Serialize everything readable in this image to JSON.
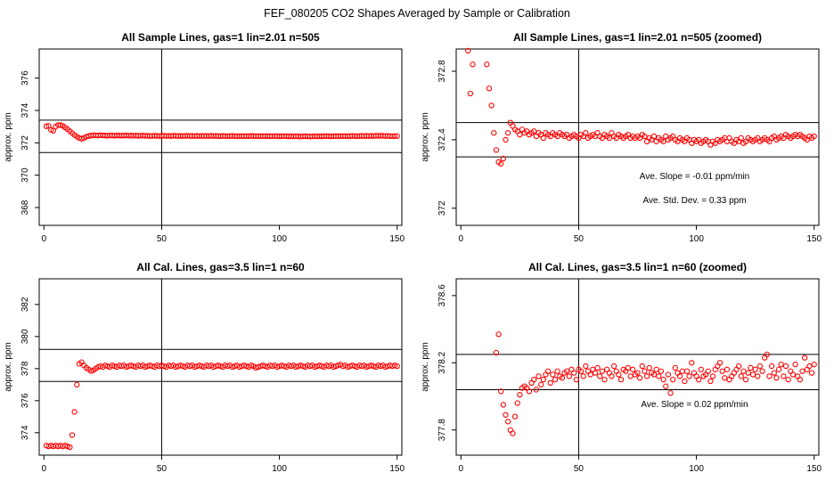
{
  "figure": {
    "title": "FEF_080205  CO2 Shapes Averaged by Sample or Calibration"
  },
  "chart_data": [
    {
      "type": "scatter",
      "title": "All Sample Lines, gas=1 lin=2.01 n=505",
      "xlabel": "",
      "ylabel": "approx. ppm",
      "xlim": [
        -2,
        152
      ],
      "ylim": [
        366.9,
        377.8
      ],
      "xticks": [
        0,
        50,
        100,
        150
      ],
      "yticks": [
        368,
        370,
        372,
        374,
        376
      ],
      "point_color": "#ff0000",
      "vline_x": 50,
      "hlines": [
        373.4,
        371.4
      ],
      "annotations": [],
      "series": [
        {
          "x_start": 1,
          "x_step": 1,
          "y": [
            373.02,
            373.05,
            372.8,
            372.75,
            373.0,
            373.1,
            373.1,
            373.05,
            372.95,
            372.85,
            372.72,
            372.6,
            372.48,
            372.38,
            372.3,
            372.25,
            372.3,
            372.38,
            372.42,
            372.45,
            372.47,
            372.46,
            372.45,
            372.47,
            372.46,
            372.45,
            372.44,
            372.46,
            372.45,
            372.44,
            372.46,
            372.45,
            372.44,
            372.45,
            372.46,
            372.44,
            372.45,
            372.44,
            372.45,
            372.43,
            372.44,
            372.45,
            372.43,
            372.44,
            372.42,
            372.43,
            372.44,
            372.43,
            372.42,
            372.43,
            372.44,
            372.42,
            372.43,
            372.42,
            372.44,
            372.43,
            372.42,
            372.43,
            372.42,
            372.43,
            372.44,
            372.42,
            372.43,
            372.42,
            372.43,
            372.42,
            372.43,
            372.42,
            372.43,
            372.42,
            372.44,
            372.42,
            372.43,
            372.42,
            372.41,
            372.43,
            372.42,
            372.41,
            372.42,
            372.43,
            372.41,
            372.42,
            372.41,
            372.42,
            372.41,
            372.42,
            372.41,
            372.43,
            372.42,
            372.41,
            372.42,
            372.41,
            372.42,
            372.41,
            372.42,
            372.41,
            372.42,
            372.41,
            372.42,
            372.4,
            372.41,
            372.42,
            372.41,
            372.4,
            372.41,
            372.4,
            372.41,
            372.4,
            372.39,
            372.4,
            372.41,
            372.4,
            372.39,
            372.4,
            372.41,
            372.4,
            372.41,
            372.4,
            372.41,
            372.42,
            372.41,
            372.4,
            372.41,
            372.42,
            372.41,
            372.42,
            372.41,
            372.42,
            372.41,
            372.42,
            372.43,
            372.42,
            372.41,
            372.42,
            372.43,
            372.42,
            372.43,
            372.42,
            372.43,
            372.42,
            372.44,
            372.43,
            372.44,
            372.43,
            372.42,
            372.43,
            372.42,
            372.41,
            372.42,
            372.42
          ]
        }
      ]
    },
    {
      "type": "scatter",
      "title": "All Sample Lines, gas=1 lin=2.01 n=505 (zoomed)",
      "xlabel": "",
      "ylabel": "approx. ppm",
      "xlim": [
        -2,
        152
      ],
      "ylim": [
        371.9,
        372.93
      ],
      "xticks": [
        0,
        50,
        100,
        150
      ],
      "yticks": [
        372.0,
        372.4,
        372.8
      ],
      "point_color": "#ff0000",
      "vline_x": 50,
      "hlines": [
        372.5,
        372.3
      ],
      "annotations": [
        "Ave. Slope =  -0.01  ppm/min",
        "Ave. Std. Dev. =  0.33  ppm"
      ],
      "series": [
        {
          "x_start": 1,
          "x_step": 1,
          "y": [
            null,
            null,
            372.92,
            372.67,
            372.84,
            null,
            null,
            null,
            null,
            null,
            372.84,
            372.7,
            372.6,
            372.44,
            372.34,
            372.27,
            372.26,
            372.29,
            372.4,
            372.44,
            372.5,
            372.48,
            372.46,
            372.45,
            372.43,
            372.46,
            372.44,
            372.45,
            372.43,
            372.44,
            372.45,
            372.42,
            372.44,
            372.43,
            372.41,
            372.44,
            372.43,
            372.42,
            372.44,
            372.43,
            372.42,
            372.44,
            372.43,
            372.42,
            372.43,
            372.41,
            372.42,
            372.43,
            372.42,
            372.41,
            372.43,
            372.42,
            372.44,
            372.41,
            372.42,
            372.43,
            372.42,
            372.44,
            372.42,
            372.41,
            372.43,
            372.42,
            372.41,
            372.44,
            372.42,
            372.41,
            372.43,
            372.42,
            372.41,
            372.42,
            372.43,
            372.41,
            372.42,
            372.41,
            372.42,
            372.41,
            372.43,
            372.42,
            372.39,
            372.41,
            372.4,
            372.42,
            372.39,
            372.41,
            372.4,
            372.39,
            372.42,
            372.4,
            372.41,
            372.42,
            372.4,
            372.39,
            372.41,
            372.4,
            372.39,
            372.41,
            372.4,
            372.38,
            372.4,
            372.39,
            372.4,
            372.38,
            372.39,
            372.4,
            372.39,
            372.37,
            372.39,
            372.38,
            372.4,
            372.39,
            372.4,
            372.41,
            372.39,
            372.41,
            372.39,
            372.38,
            372.4,
            372.39,
            372.41,
            372.38,
            372.39,
            372.41,
            372.4,
            372.39,
            372.4,
            372.41,
            372.39,
            372.4,
            372.41,
            372.4,
            372.39,
            372.41,
            372.42,
            372.4,
            372.41,
            372.42,
            372.41,
            372.43,
            372.42,
            372.41,
            372.42,
            372.43,
            372.42,
            372.43,
            372.42,
            372.41,
            372.4,
            372.42,
            372.41,
            372.42
          ]
        }
      ]
    },
    {
      "type": "scatter",
      "title": "All Cal. Lines, gas=3.5 lin=1 n=60",
      "xlabel": "",
      "ylabel": "approx. ppm",
      "xlim": [
        -2,
        152
      ],
      "ylim": [
        372.6,
        383.6
      ],
      "xticks": [
        0,
        50,
        100,
        150
      ],
      "yticks": [
        374,
        376,
        378,
        380,
        382
      ],
      "point_color": "#ff0000",
      "vline_x": 50,
      "hlines": [
        379.2,
        377.2
      ],
      "annotations": [],
      "series": [
        {
          "x_start": 1,
          "x_step": 1,
          "y": [
            373.2,
            373.15,
            373.2,
            373.15,
            373.2,
            373.15,
            373.2,
            373.15,
            373.2,
            373.15,
            373.1,
            373.85,
            375.3,
            377.0,
            378.3,
            378.4,
            378.2,
            378.05,
            377.95,
            377.85,
            377.9,
            378.0,
            378.1,
            378.15,
            378.1,
            378.2,
            378.15,
            378.1,
            378.2,
            378.15,
            378.1,
            378.2,
            378.15,
            378.2,
            378.1,
            378.15,
            378.2,
            378.15,
            378.1,
            378.2,
            378.15,
            378.2,
            378.1,
            378.15,
            378.2,
            378.15,
            378.1,
            378.2,
            378.15,
            378.2,
            378.15,
            378.1,
            378.2,
            378.15,
            378.2,
            378.1,
            378.15,
            378.2,
            378.15,
            378.1,
            378.2,
            378.15,
            378.2,
            378.1,
            378.15,
            378.2,
            378.15,
            378.1,
            378.2,
            378.15,
            378.2,
            378.1,
            378.15,
            378.2,
            378.15,
            378.1,
            378.2,
            378.15,
            378.2,
            378.1,
            378.15,
            378.2,
            378.1,
            378.15,
            378.2,
            378.15,
            378.1,
            378.2,
            378.15,
            378.05,
            378.1,
            378.15,
            378.2,
            378.15,
            378.1,
            378.2,
            378.15,
            378.2,
            378.1,
            378.15,
            378.2,
            378.15,
            378.1,
            378.2,
            378.15,
            378.2,
            378.1,
            378.15,
            378.2,
            378.15,
            378.1,
            378.2,
            378.15,
            378.2,
            378.1,
            378.15,
            378.2,
            378.15,
            378.1,
            378.2,
            378.15,
            378.2,
            378.1,
            378.15,
            378.2,
            378.25,
            378.15,
            378.2,
            378.1,
            378.15,
            378.2,
            378.15,
            378.1,
            378.2,
            378.15,
            378.2,
            378.1,
            378.15,
            378.2,
            378.15,
            378.1,
            378.2,
            378.15,
            378.2,
            378.1,
            378.15,
            378.2,
            378.15,
            378.2,
            378.15
          ]
        }
      ]
    },
    {
      "type": "scatter",
      "title": "All Cal. Lines, gas=3.5 lin=1 n=60 (zoomed)",
      "xlabel": "",
      "ylabel": "approx. ppm",
      "xlim": [
        -2,
        152
      ],
      "ylim": [
        377.65,
        378.7
      ],
      "xticks": [
        0,
        50,
        100,
        150
      ],
      "yticks": [
        377.8,
        378.2,
        378.6
      ],
      "point_color": "#ff0000",
      "vline_x": 50,
      "hlines": [
        378.25,
        378.04
      ],
      "annotations": [
        "Ave. Slope =  0.02  ppm/min"
      ],
      "series": [
        {
          "x_start": 1,
          "x_step": 1,
          "y": [
            null,
            null,
            null,
            null,
            null,
            null,
            null,
            null,
            null,
            null,
            null,
            null,
            null,
            null,
            378.26,
            378.37,
            378.03,
            377.95,
            377.89,
            377.85,
            377.8,
            377.78,
            377.88,
            377.96,
            378.01,
            378.05,
            378.06,
            378.05,
            378.03,
            378.08,
            378.1,
            378.04,
            378.12,
            378.07,
            378.1,
            378.13,
            378.15,
            378.08,
            378.13,
            378.1,
            378.15,
            378.12,
            378.11,
            378.14,
            378.15,
            378.12,
            378.16,
            378.14,
            378.1,
            378.16,
            378.15,
            378.12,
            378.18,
            378.15,
            378.13,
            378.16,
            378.14,
            378.17,
            378.12,
            378.15,
            378.1,
            378.16,
            378.14,
            378.12,
            378.18,
            378.15,
            378.13,
            378.1,
            378.16,
            378.15,
            378.17,
            378.12,
            378.16,
            378.13,
            378.14,
            378.11,
            378.18,
            378.15,
            378.12,
            378.17,
            378.14,
            378.13,
            378.16,
            378.12,
            378.15,
            378.1,
            378.06,
            378.13,
            378.02,
            378.1,
            378.17,
            378.14,
            378.12,
            378.15,
            378.09,
            378.15,
            378.12,
            378.2,
            378.14,
            378.12,
            378.1,
            378.16,
            378.12,
            378.13,
            378.15,
            378.09,
            378.12,
            378.16,
            378.18,
            378.2,
            378.15,
            378.11,
            378.16,
            378.1,
            378.12,
            378.14,
            378.16,
            378.18,
            378.12,
            378.15,
            378.1,
            378.14,
            378.17,
            378.13,
            378.16,
            378.12,
            378.18,
            378.15,
            378.23,
            378.25,
            378.12,
            378.18,
            378.14,
            378.11,
            378.16,
            378.19,
            378.12,
            378.18,
            378.1,
            378.15,
            378.13,
            378.19,
            378.12,
            378.1,
            378.15,
            378.23,
            378.16,
            378.18,
            378.14,
            378.19
          ]
        }
      ]
    }
  ]
}
